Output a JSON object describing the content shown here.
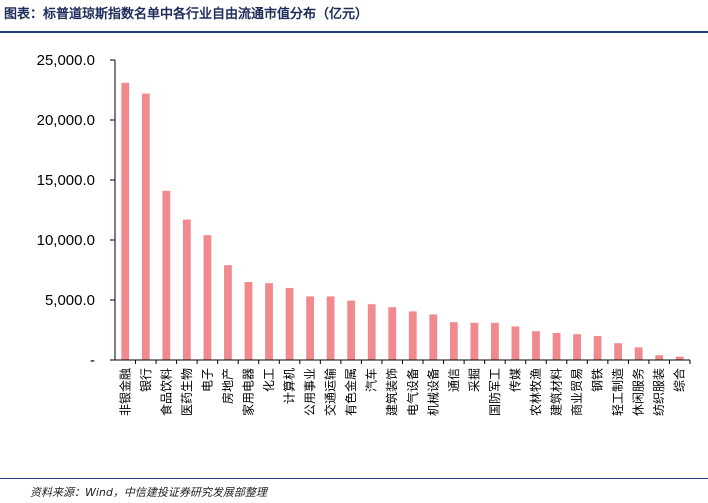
{
  "title": "图表：标普道琼斯指数名单中各行业自由流通市值分布（亿元）",
  "source": "资料来源：Wind，中信建投证券研究发展部整理",
  "colors": {
    "bar": "#f08a8f",
    "axis": "#000000",
    "title": "#1f2d5a",
    "rule": "#1f3f7a"
  },
  "chart_data": {
    "type": "bar",
    "title": "",
    "xlabel": "",
    "ylabel": "",
    "ylim": [
      0,
      25000
    ],
    "yticks": [
      0,
      5000,
      10000,
      15000,
      20000,
      25000
    ],
    "ytick_labels": [
      "-",
      "5,000.0",
      "10,000.0",
      "15,000.0",
      "20,000.0",
      "25,000.0"
    ],
    "grid": false,
    "categories": [
      "非银金融",
      "银行",
      "食品饮料",
      "医药生物",
      "电子",
      "房地产",
      "家用电器",
      "化工",
      "计算机",
      "公用事业",
      "交通运输",
      "有色金属",
      "汽车",
      "建筑装饰",
      "电气设备",
      "机械设备",
      "通信",
      "采掘",
      "国防军工",
      "传媒",
      "农林牧渔",
      "建筑材料",
      "商业贸易",
      "钢铁",
      "轻工制造",
      "休闲服务",
      "纺织服装",
      "综合"
    ],
    "values": [
      23100,
      22200,
      14100,
      11700,
      10400,
      7900,
      6500,
      6400,
      6000,
      5300,
      5300,
      4950,
      4650,
      4400,
      4050,
      3800,
      3150,
      3100,
      3100,
      2800,
      2400,
      2250,
      2150,
      2000,
      1400,
      1050,
      400,
      280
    ]
  }
}
